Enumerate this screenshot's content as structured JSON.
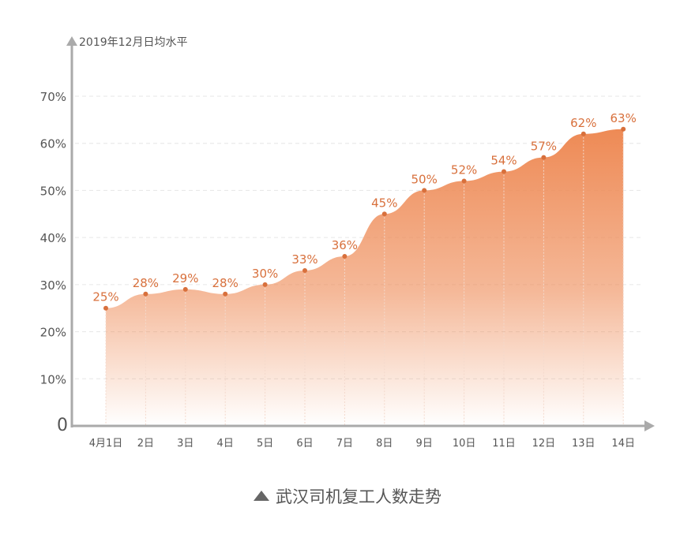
{
  "chart_data": {
    "type": "area",
    "title": "武汉司机复工人数走势",
    "ylabel": "2019年12月日均水平",
    "xlabel": "",
    "categories": [
      "4月1日",
      "2日",
      "3日",
      "4日",
      "5日",
      "6日",
      "7日",
      "8日",
      "9日",
      "10日",
      "11日",
      "12日",
      "13日",
      "14日"
    ],
    "values": [
      25,
      28,
      29,
      28,
      30,
      33,
      36,
      45,
      50,
      52,
      54,
      57,
      62,
      63
    ],
    "data_labels": [
      "25%",
      "28%",
      "29%",
      "28%",
      "30%",
      "33%",
      "36%",
      "45%",
      "50%",
      "52%",
      "54%",
      "57%",
      "62%",
      "63%"
    ],
    "yticks": [
      "0",
      "10%",
      "20%",
      "30%",
      "40%",
      "50%",
      "60%",
      "70%"
    ],
    "ylim": [
      0,
      70
    ],
    "grid": true,
    "legend": "none",
    "colors": {
      "fill": "#ee8a55",
      "label": "#d8703c",
      "axis": "#aaaaaa"
    }
  }
}
